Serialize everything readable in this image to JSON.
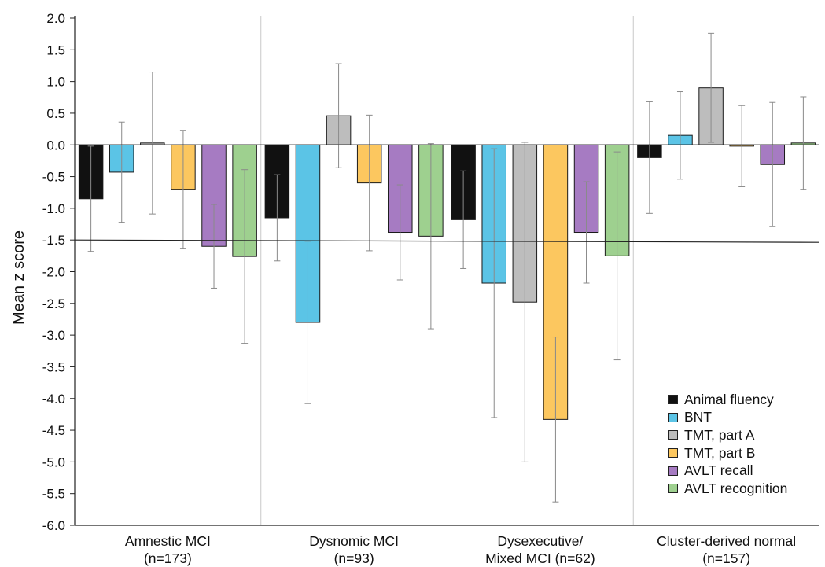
{
  "chart_data": {
    "type": "bar",
    "ylabel": "Mean z score",
    "xlabel": "",
    "ylim": [
      -6.0,
      2.0
    ],
    "ytick_step": 0.5,
    "reference_line": -1.5,
    "grid": false,
    "legend_position": "bottom-right",
    "categories": [
      [
        "Amnestic MCI",
        "(n=173)"
      ],
      [
        "Dysnomic MCI",
        "(n=93)"
      ],
      [
        "Dysexecutive/",
        "Mixed MCI (n=62)"
      ],
      [
        "Cluster-derived normal",
        "(n=157)"
      ]
    ],
    "series": [
      {
        "name": "Animal fluency",
        "color": "#111111",
        "values": [
          -0.85,
          -1.15,
          -1.18,
          -0.2
        ],
        "errors": [
          0.83,
          0.68,
          0.77,
          0.88
        ]
      },
      {
        "name": "BNT",
        "color": "#5bc4e6",
        "values": [
          -0.43,
          -2.8,
          -2.18,
          0.15
        ],
        "errors": [
          0.79,
          1.28,
          2.12,
          0.69
        ]
      },
      {
        "name": "TMT, part A",
        "color": "#bdbdbd",
        "values": [
          0.03,
          0.46,
          -2.48,
          0.9
        ],
        "errors": [
          1.12,
          0.82,
          2.52,
          0.86
        ]
      },
      {
        "name": "TMT, part B",
        "color": "#fcc75f",
        "values": [
          -0.7,
          -0.6,
          -4.33,
          -0.02
        ],
        "errors": [
          0.93,
          1.07,
          1.3,
          0.64
        ]
      },
      {
        "name": "AVLT recall",
        "color": "#a67bc2",
        "values": [
          -1.6,
          -1.38,
          -1.38,
          -0.31
        ],
        "errors": [
          0.66,
          0.75,
          0.8,
          0.98
        ]
      },
      {
        "name": "AVLT recognition",
        "color": "#9ed08f",
        "values": [
          -1.76,
          -1.44,
          -1.75,
          0.03
        ],
        "errors": [
          1.37,
          1.46,
          1.64,
          0.73
        ]
      }
    ]
  }
}
